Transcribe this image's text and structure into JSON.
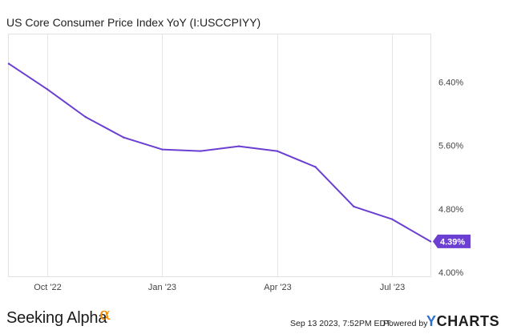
{
  "chart_data": {
    "type": "line",
    "title": "US Core Consumer Price Index YoY (I:USCCPIYY)",
    "x": [
      "2022-09",
      "2022-10",
      "2022-11",
      "2022-12",
      "2023-01",
      "2023-02",
      "2023-03",
      "2023-04",
      "2023-05",
      "2023-06",
      "2023-07",
      "2023-08"
    ],
    "x_tick_labels": [
      "Oct '22",
      "Jan '23",
      "Apr '23",
      "Jul '23"
    ],
    "x_tick_positions": [
      "2022-10",
      "2023-01",
      "2023-04",
      "2023-07"
    ],
    "series": [
      {
        "values": [
          6.63,
          6.31,
          5.96,
          5.7,
          5.55,
          5.53,
          5.59,
          5.53,
          5.33,
          4.83,
          4.67,
          4.39
        ],
        "color": "#6b3fd2"
      }
    ],
    "y_tick_labels": [
      "6.40%",
      "5.60%",
      "4.80%",
      "4.00%"
    ],
    "y_tick_values": [
      6.4,
      5.6,
      4.8,
      4.0
    ],
    "ylim": [
      3.95,
      7.0
    ],
    "last_value_label": "4.39%",
    "grid": "vertical",
    "legend": "none"
  },
  "footer": {
    "brand": "Seeking Alpha",
    "brand_mark": "α",
    "timestamp": "Sep 13 2023, 7:52PM EDT.",
    "powered_by": "Powered by",
    "ycharts_y": "Y",
    "ycharts_rest": "CHARTS"
  }
}
